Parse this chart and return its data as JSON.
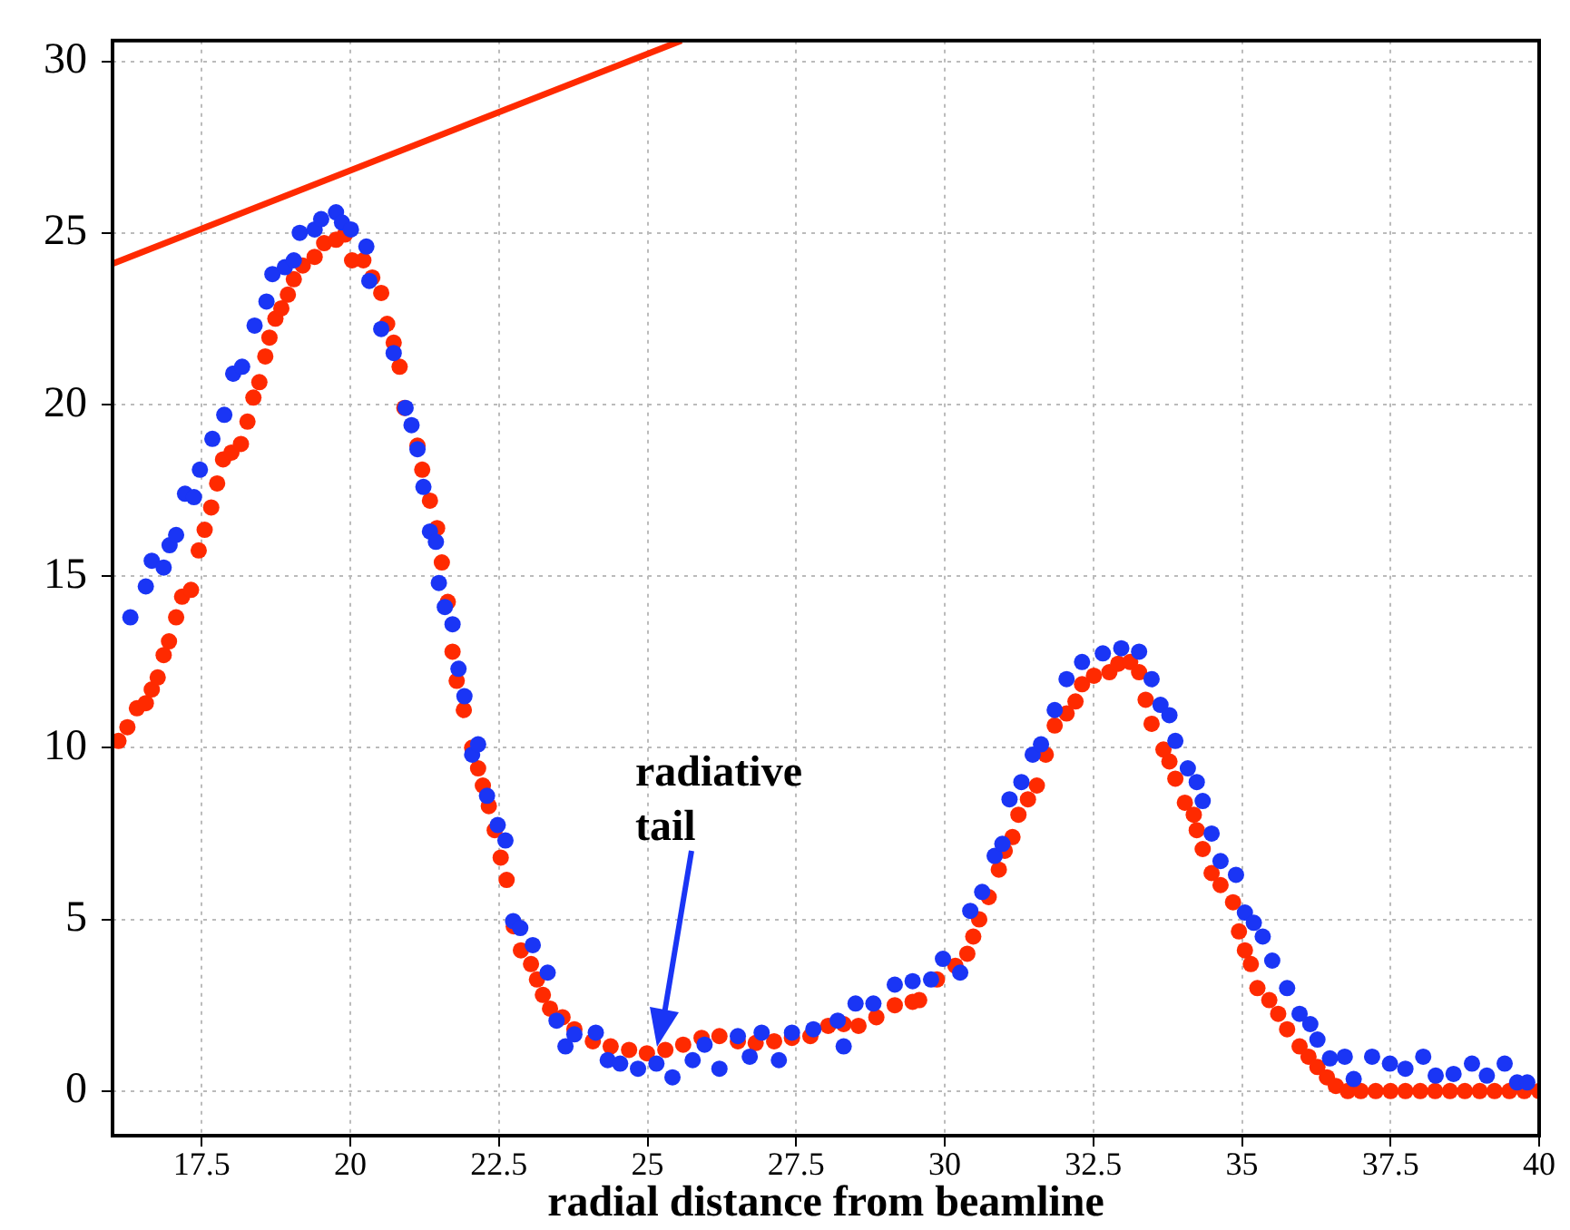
{
  "chart_data": {
    "type": "scatter",
    "xlabel": "radial distance from beamline",
    "xlim": [
      16,
      40
    ],
    "ylim": [
      -1.3,
      30.6
    ],
    "xticks": [
      17.5,
      20,
      22.5,
      25,
      27.5,
      30,
      32.5,
      35,
      37.5,
      40
    ],
    "yticks": [
      0,
      5,
      10,
      15,
      20,
      25,
      30
    ],
    "grid": true,
    "marker": "circle",
    "annotations": [
      "radiative tail"
    ],
    "series": [
      {
        "color": "#1a35f5",
        "x": [
          16.3,
          16.56,
          16.66,
          16.86,
          16.96,
          17.07,
          17.22,
          17.37,
          17.47,
          17.68,
          17.88,
          18.03,
          18.18,
          18.39,
          18.59,
          18.69,
          18.9,
          19.05,
          19.15,
          19.4,
          19.51,
          19.76,
          19.86,
          20.01,
          20.27,
          20.32,
          20.52,
          20.73,
          20.93,
          21.03,
          21.13,
          21.23,
          21.34,
          21.44,
          21.49,
          21.59,
          21.72,
          21.82,
          21.92,
          22.05,
          22.15,
          22.3,
          22.48,
          22.61,
          22.74,
          22.86,
          23.07,
          23.32,
          23.47,
          23.62,
          23.77,
          24.13,
          24.33,
          24.54,
          24.84,
          25.15,
          25.42,
          25.76,
          25.96,
          26.21,
          26.52,
          26.72,
          26.92,
          27.21,
          27.43,
          27.79,
          28.2,
          28.3,
          28.5,
          28.8,
          29.16,
          29.46,
          29.77,
          29.97,
          30.26,
          30.43,
          30.63,
          30.84,
          30.97,
          31.09,
          31.29,
          31.48,
          31.62,
          31.85,
          32.05,
          32.31,
          32.66,
          32.97,
          33.27,
          33.48,
          33.63,
          33.78,
          33.88,
          34.09,
          34.24,
          34.34,
          34.49,
          34.64,
          34.9,
          35.05,
          35.2,
          35.35,
          35.51,
          35.76,
          35.97,
          36.15,
          36.27,
          36.48,
          36.73,
          36.88,
          37.19,
          37.49,
          37.75,
          38.05,
          38.26,
          38.56,
          38.87,
          39.12,
          39.42,
          39.63,
          39.8
        ],
        "values": [
          13.8,
          14.7,
          15.45,
          15.25,
          15.9,
          16.2,
          17.4,
          17.3,
          18.1,
          19.0,
          19.7,
          20.9,
          21.1,
          22.3,
          23.0,
          23.8,
          24.0,
          24.2,
          25.0,
          25.1,
          25.4,
          25.6,
          25.3,
          25.1,
          24.6,
          23.6,
          22.2,
          21.5,
          19.9,
          19.4,
          18.7,
          17.6,
          16.3,
          16.0,
          14.8,
          14.1,
          13.6,
          12.3,
          11.5,
          9.8,
          10.1,
          8.6,
          7.75,
          7.3,
          4.95,
          4.75,
          4.25,
          3.45,
          2.05,
          1.3,
          1.65,
          1.7,
          0.9,
          0.8,
          0.65,
          0.8,
          0.4,
          0.9,
          1.35,
          0.65,
          1.6,
          1.0,
          1.7,
          0.9,
          1.7,
          1.8,
          2.05,
          1.3,
          2.55,
          2.55,
          3.1,
          3.2,
          3.25,
          3.85,
          3.45,
          5.25,
          5.8,
          6.85,
          7.2,
          8.5,
          9.0,
          9.8,
          10.1,
          11.1,
          12.0,
          12.5,
          12.75,
          12.9,
          12.8,
          12.0,
          11.25,
          10.95,
          10.2,
          9.4,
          9.0,
          8.45,
          7.5,
          6.7,
          6.3,
          5.2,
          4.9,
          4.5,
          3.8,
          3.0,
          2.25,
          1.95,
          1.5,
          0.95,
          1.0,
          0.35,
          1.0,
          0.8,
          0.65,
          1.0,
          0.45,
          0.5,
          0.8,
          0.45,
          0.8,
          0.25,
          0.25
        ]
      },
      {
        "color": "#ff2a00",
        "x": [
          16.1,
          16.25,
          16.41,
          16.56,
          16.66,
          16.76,
          16.86,
          16.95,
          17.07,
          17.17,
          17.32,
          17.45,
          17.55,
          17.66,
          17.76,
          17.86,
          18.0,
          18.16,
          18.27,
          18.37,
          18.47,
          18.57,
          18.64,
          18.74,
          18.84,
          18.95,
          19.05,
          19.2,
          19.4,
          19.56,
          19.76,
          19.91,
          20.03,
          20.22,
          20.37,
          20.52,
          20.62,
          20.73,
          20.83,
          20.91,
          21.13,
          21.21,
          21.34,
          21.46,
          21.54,
          21.64,
          21.72,
          21.79,
          21.91,
          22.05,
          22.15,
          22.23,
          22.33,
          22.43,
          22.53,
          22.63,
          22.75,
          22.87,
          23.04,
          23.14,
          23.24,
          23.36,
          23.57,
          23.77,
          24.08,
          24.38,
          24.69,
          24.99,
          25.3,
          25.6,
          25.91,
          26.21,
          26.52,
          26.82,
          27.13,
          27.43,
          27.74,
          28.04,
          28.3,
          28.55,
          28.85,
          29.16,
          29.46,
          29.57,
          29.87,
          30.18,
          30.38,
          30.48,
          30.58,
          30.74,
          30.91,
          31.01,
          31.14,
          31.24,
          31.4,
          31.55,
          31.7,
          31.85,
          32.05,
          32.2,
          32.31,
          32.51,
          32.77,
          32.92,
          33.12,
          33.27,
          33.38,
          33.48,
          33.68,
          33.78,
          33.88,
          34.04,
          34.19,
          34.24,
          34.34,
          34.49,
          34.64,
          34.85,
          34.95,
          35.05,
          35.15,
          35.26,
          35.46,
          35.61,
          35.76,
          35.97,
          36.12,
          36.27,
          36.43,
          36.58,
          36.78,
          37.0,
          37.25,
          37.5,
          37.75,
          38.0,
          38.25,
          38.5,
          38.75,
          39.0,
          39.25,
          39.5,
          39.75,
          40.0
        ],
        "values": [
          10.2,
          10.6,
          11.15,
          11.3,
          11.7,
          12.05,
          12.7,
          13.1,
          13.8,
          14.4,
          14.6,
          15.75,
          16.35,
          17.0,
          17.7,
          18.4,
          18.6,
          18.85,
          19.5,
          20.2,
          20.65,
          21.4,
          21.95,
          22.5,
          22.8,
          23.2,
          23.65,
          24.05,
          24.3,
          24.7,
          24.8,
          24.95,
          24.2,
          24.2,
          23.7,
          23.25,
          22.35,
          21.8,
          21.1,
          19.9,
          18.8,
          18.1,
          17.2,
          16.4,
          15.4,
          14.25,
          12.8,
          11.95,
          11.1,
          10.0,
          9.4,
          8.9,
          8.3,
          7.6,
          6.8,
          6.15,
          4.8,
          4.1,
          3.7,
          3.25,
          2.8,
          2.4,
          2.15,
          1.8,
          1.45,
          1.3,
          1.2,
          1.1,
          1.2,
          1.35,
          1.55,
          1.6,
          1.45,
          1.4,
          1.45,
          1.55,
          1.6,
          1.9,
          1.95,
          1.9,
          2.15,
          2.5,
          2.6,
          2.65,
          3.25,
          3.65,
          4.0,
          4.5,
          5.0,
          5.65,
          6.45,
          7.0,
          7.4,
          8.05,
          8.5,
          8.9,
          9.8,
          10.65,
          11.0,
          11.35,
          11.85,
          12.1,
          12.2,
          12.45,
          12.5,
          12.2,
          11.4,
          10.7,
          9.95,
          9.6,
          9.1,
          8.4,
          8.05,
          7.6,
          7.05,
          6.35,
          6.0,
          5.5,
          4.65,
          4.1,
          3.7,
          3.0,
          2.65,
          2.25,
          1.8,
          1.3,
          1.0,
          0.7,
          0.4,
          0.15,
          0,
          0,
          0,
          0,
          0,
          0,
          0,
          0,
          0,
          0,
          0,
          0,
          0,
          0
        ]
      },
      {
        "type": "line",
        "marker": "none",
        "color": "#ff2a00",
        "x": [
          16,
          25.57
        ],
        "values": [
          24.1,
          30.6
        ]
      }
    ]
  }
}
